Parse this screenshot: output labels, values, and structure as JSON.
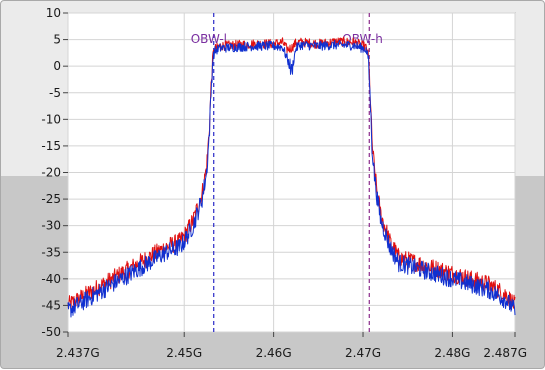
{
  "chart_data": {
    "type": "line",
    "title": "",
    "xlabel": "",
    "ylabel": "",
    "xlim": [
      2.437,
      2.487
    ],
    "ylim": [
      -50,
      10
    ],
    "x_ticks": [
      {
        "value": 2.437,
        "label": "2.437G"
      },
      {
        "value": 2.45,
        "label": "2.45G"
      },
      {
        "value": 2.46,
        "label": "2.46G"
      },
      {
        "value": 2.47,
        "label": "2.47G"
      },
      {
        "value": 2.48,
        "label": "2.48G"
      },
      {
        "value": 2.487,
        "label": "2.487G"
      }
    ],
    "y_ticks": [
      {
        "value": 10,
        "label": "10"
      },
      {
        "value": 5,
        "label": "5"
      },
      {
        "value": 0,
        "label": "0"
      },
      {
        "value": -5,
        "label": "-5"
      },
      {
        "value": -10,
        "label": "-10"
      },
      {
        "value": -15,
        "label": "-15"
      },
      {
        "value": -20,
        "label": "-20"
      },
      {
        "value": -25,
        "label": "-25"
      },
      {
        "value": -30,
        "label": "-30"
      },
      {
        "value": -35,
        "label": "-35"
      },
      {
        "value": -40,
        "label": "-40"
      },
      {
        "value": -45,
        "label": "-45"
      },
      {
        "value": -50,
        "label": "-50"
      }
    ],
    "grid": true,
    "markers": [
      {
        "label": "OBW-l",
        "x": 2.4533,
        "color": "#2a2ac8"
      },
      {
        "label": "OBW-h",
        "x": 2.4707,
        "color": "#8a2a8a"
      }
    ],
    "series": [
      {
        "color": "#e01010",
        "x": [
          2.437,
          2.438,
          2.44,
          2.442,
          2.444,
          2.446,
          2.448,
          2.4495,
          2.45,
          2.451,
          2.452,
          2.4525,
          2.4528,
          2.453,
          2.4532,
          2.4534,
          2.454,
          2.456,
          2.458,
          2.46,
          2.461,
          2.4615,
          2.462,
          2.4625,
          2.463,
          2.465,
          2.467,
          2.469,
          2.4703,
          2.4706,
          2.4708,
          2.471,
          2.4713,
          2.4716,
          2.472,
          2.473,
          2.474,
          2.476,
          2.478,
          2.48,
          2.482,
          2.484,
          2.486,
          2.487
        ],
        "values": [
          -45,
          -44,
          -42,
          -40,
          -38,
          -36,
          -34,
          -33,
          -32,
          -29,
          -24,
          -19,
          -12,
          -4,
          2,
          3.2,
          3.8,
          4,
          4.2,
          4.2,
          4.5,
          3.2,
          3.4,
          4.4,
          4.5,
          4.2,
          4.6,
          4.5,
          3.6,
          2,
          -5,
          -14,
          -20,
          -24,
          -28,
          -33,
          -36,
          -37,
          -38,
          -39,
          -40,
          -41,
          -43,
          -45
        ]
      },
      {
        "color": "#1030d0",
        "x": [
          2.437,
          2.438,
          2.44,
          2.442,
          2.444,
          2.446,
          2.448,
          2.4495,
          2.45,
          2.451,
          2.452,
          2.4525,
          2.4528,
          2.453,
          2.4532,
          2.4534,
          2.454,
          2.456,
          2.458,
          2.46,
          2.461,
          2.4615,
          2.462,
          2.4625,
          2.463,
          2.465,
          2.467,
          2.469,
          2.4703,
          2.4706,
          2.4708,
          2.471,
          2.4713,
          2.4716,
          2.472,
          2.473,
          2.474,
          2.476,
          2.478,
          2.48,
          2.482,
          2.484,
          2.486,
          2.487
        ],
        "values": [
          -46,
          -45,
          -43,
          -41,
          -39,
          -37,
          -35,
          -34,
          -33,
          -30,
          -25,
          -20,
          -13,
          -5,
          1.5,
          2.8,
          3.4,
          3.6,
          3.8,
          3.8,
          3.6,
          1.5,
          -1,
          3.4,
          4,
          3.8,
          4,
          3.9,
          3.2,
          1.5,
          -6,
          -15,
          -21,
          -25,
          -29,
          -34,
          -37,
          -38,
          -39,
          -40,
          -41,
          -42,
          -44,
          -46
        ]
      }
    ]
  }
}
